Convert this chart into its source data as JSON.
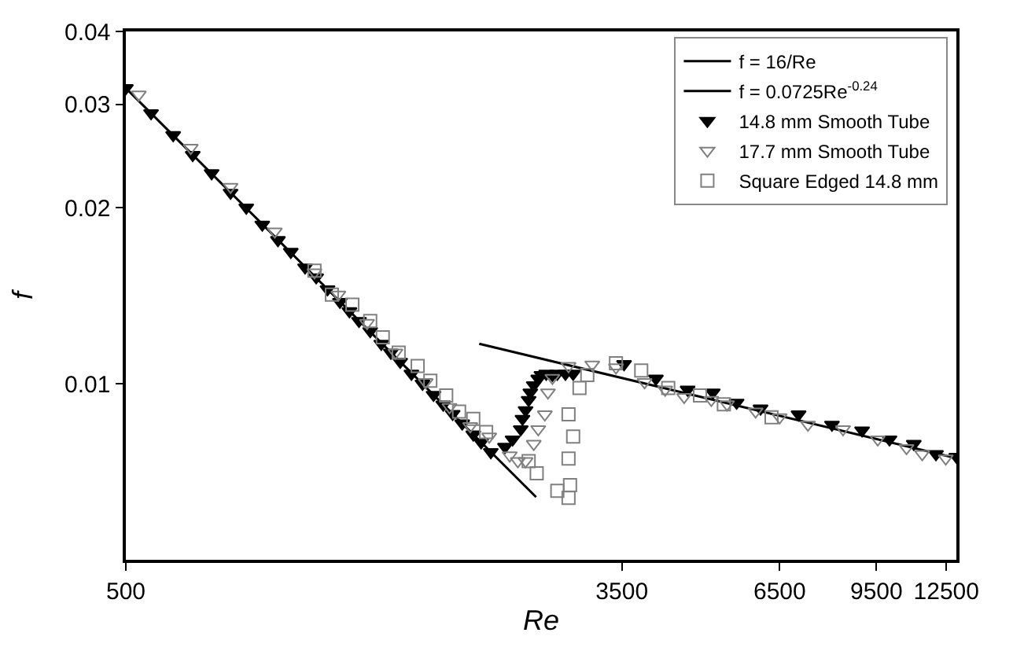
{
  "chart_data": {
    "type": "scatter",
    "xlabel": "Re",
    "ylabel": "f",
    "log": "xy",
    "grid": false,
    "legend": "top right",
    "xlim": [
      500,
      13000
    ],
    "xticks": [
      500,
      3500,
      6500,
      9500,
      12500
    ],
    "ylim": [
      0.005,
      0.04
    ],
    "yticks": [
      0.01,
      0.02,
      0.03,
      0.04
    ],
    "series": [
      {
        "name": "f = 16/Re",
        "type": "line",
        "color": "#000000",
        "marker": "none",
        "line_style": "solid",
        "x": [
          500,
          2500
        ],
        "values": [
          0.032,
          0.0064
        ]
      },
      {
        "name": "f = 0.0725Re$^{-0.24}$",
        "type": "line",
        "color": "#000000",
        "marker": "none",
        "line_style": "solid",
        "x": [
          2000,
          13000
        ],
        "values": [
          0.0117,
          0.00746
        ]
      },
      {
        "name": "14.8 mm Smooth Tube",
        "color": "#000000",
        "marker": "triangle-down",
        "x": [
          500,
          552,
          602,
          650,
          700,
          754,
          802,
          854,
          908,
          955,
          1010,
          1055,
          1103,
          1158,
          1202,
          1248,
          1304,
          1362,
          1414,
          1467,
          1533,
          1601,
          1672,
          1737,
          1802,
          1871,
          1954,
          2015,
          2093,
          2213,
          2280,
          2354,
          2370,
          2399,
          2428,
          2444,
          2477,
          2521,
          2553,
          2601,
          2665,
          2717,
          2805,
          2891,
          3530,
          4000,
          4530,
          5000,
          5490,
          6030,
          7000,
          7980,
          8980,
          10000,
          11000,
          12000,
          13000
        ],
        "values": [
          0.032,
          0.029,
          0.0266,
          0.0246,
          0.0229,
          0.0212,
          0.02,
          0.0187,
          0.0176,
          0.0168,
          0.0158,
          0.0152,
          0.0145,
          0.0138,
          0.0133,
          0.0128,
          0.0123,
          0.0117,
          0.0113,
          0.0109,
          0.0104,
          0.01,
          0.00957,
          0.00921,
          0.00888,
          0.00855,
          0.00819,
          0.00794,
          0.00764,
          0.0078,
          0.00803,
          0.00836,
          0.00871,
          0.00901,
          0.00938,
          0.00966,
          0.00994,
          0.0102,
          0.01035,
          0.0104,
          0.01035,
          0.0104,
          0.0104,
          0.0104,
          0.0108,
          0.0102,
          0.00977,
          0.00966,
          0.00928,
          0.00907,
          0.00886,
          0.00851,
          0.00832,
          0.00803,
          0.00789,
          0.00758,
          0.0075
        ]
      },
      {
        "name": "17.7 mm Smooth Tube",
        "color": "#808080",
        "marker": "triangle-down-open",
        "x": [
          526,
          645,
          754,
          897,
          1048,
          1151,
          1288,
          1440,
          1621,
          1780,
          1931,
          2080,
          2254,
          2327,
          2399,
          2477,
          2521,
          2587,
          2619,
          2665,
          2839,
          3116,
          3420,
          3826,
          4148,
          4468,
          4971,
          5287,
          5914,
          6498,
          7262,
          8334,
          9550,
          10690,
          11370,
          12470
        ],
        "values": [
          0.0312,
          0.0253,
          0.0217,
          0.0182,
          0.0155,
          0.0142,
          0.0127,
          0.0113,
          0.01006,
          0.00912,
          0.00846,
          0.00812,
          0.00754,
          0.00737,
          0.00737,
          0.00789,
          0.00836,
          0.00886,
          0.00966,
          0.01023,
          0.01072,
          0.01078,
          0.01066,
          0.01006,
          0.00977,
          0.00949,
          0.00938,
          0.00922,
          0.00896,
          0.00876,
          0.00851,
          0.00836,
          0.00803,
          0.00776,
          0.00758,
          0.00745
        ]
      },
      {
        "name": "Square Edged 14.8 mm",
        "color": "#808080",
        "marker": "square-open",
        "x": [
          1048,
          1122,
          1216,
          1304,
          1370,
          1458,
          1571,
          1651,
          1757,
          1848,
          1954,
          2055,
          2428,
          2506,
          2717,
          2839,
          2839,
          2839,
          2856,
          2891,
          2964,
          3056,
          3420,
          3776,
          4198,
          4755,
          5222,
          6295
        ],
        "values": [
          0.0156,
          0.0142,
          0.01365,
          0.0128,
          0.012,
          0.0113,
          0.01072,
          0.01012,
          0.00955,
          0.00896,
          0.00871,
          0.00827,
          0.00737,
          0.00703,
          0.00656,
          0.00886,
          0.00745,
          0.00638,
          0.00671,
          0.00812,
          0.00983,
          0.01035,
          0.01084,
          0.01053,
          0.00983,
          0.00955,
          0.00922,
          0.00876
        ]
      }
    ]
  }
}
